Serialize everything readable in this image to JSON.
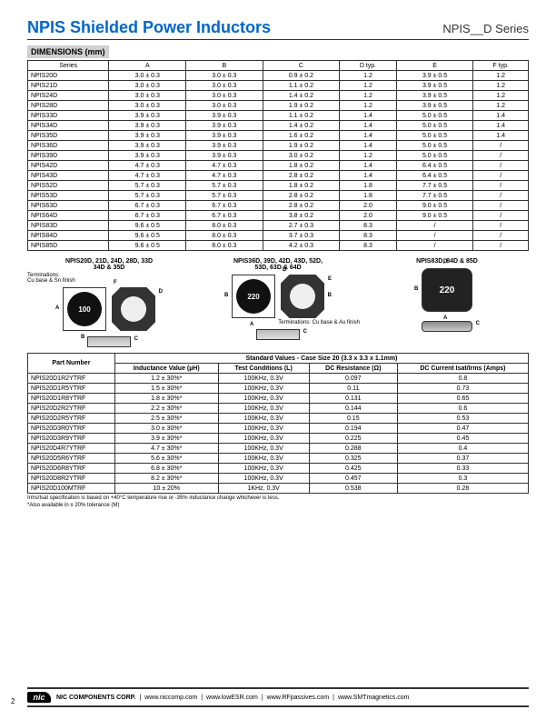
{
  "header": {
    "title": "NPIS Shielded Power Inductors",
    "series": "NPIS__D Series"
  },
  "dimensions": {
    "title": "DIMENSIONS (mm)",
    "columns": [
      "Series",
      "A",
      "B",
      "C",
      "D typ.",
      "E",
      "F typ."
    ],
    "rows": [
      [
        "NPIS20D",
        "3.0 ± 0.3",
        "3.0 ± 0.3",
        "0.9 ± 0.2",
        "1.2",
        "3.9 ± 0.5",
        "1.2"
      ],
      [
        "NPIS21D",
        "3.0 ± 0.3",
        "3.0 ± 0.3",
        "1.1 ± 0.2",
        "1.2",
        "3.9 ± 0.5",
        "1.2"
      ],
      [
        "NPIS24D",
        "3.0 ± 0.3",
        "3.0 ± 0.3",
        "1.4 ± 0.2",
        "1.2",
        "3.9 ± 0.5",
        "1.2"
      ],
      [
        "NPIS28D",
        "3.0 ± 0.3",
        "3.0 ± 0.3",
        "1.9 ± 0.2",
        "1.2",
        "3.9 ± 0.5",
        "1.2"
      ],
      [
        "NPIS33D",
        "3.9 ± 0.3",
        "3.9 ± 0.3",
        "1.1 ± 0.2",
        "1.4",
        "5.0 ± 0.5",
        "1.4"
      ],
      [
        "NPIS34D",
        "3.9 ± 0.3",
        "3.9 ± 0.3",
        "1.4 ± 0.2",
        "1.4",
        "5.0 ± 0.5",
        "1.4"
      ],
      [
        "NPIS35D",
        "3.9 ± 0.3",
        "3.9 ± 0.3",
        "1.6 ± 0.2",
        "1.4",
        "5.0 ± 0.5",
        "1.4"
      ],
      [
        "NPIS36D",
        "3.9 ± 0.3",
        "3.9 ± 0.3",
        "1.9 ± 0.2",
        "1.4",
        "5.0 ± 0.5",
        "/"
      ],
      [
        "NPIS39D",
        "3.9 ± 0.3",
        "3.9 ± 0.3",
        "3.0 ± 0.2",
        "1.2",
        "5.0 ± 0.5",
        "/"
      ],
      [
        "NPIS42D",
        "4.7 ± 0.3",
        "4.7 ± 0.3",
        "1.8 ± 0.2",
        "1.4",
        "6.4 ± 0.5",
        "/"
      ],
      [
        "NPIS43D",
        "4.7 ± 0.3",
        "4.7 ± 0.3",
        "2.8 ± 0.2",
        "1.4",
        "6.4 ± 0.5",
        "/"
      ],
      [
        "NPIS52D",
        "5.7 ± 0.3",
        "5.7 ± 0.3",
        "1.8 ± 0.2",
        "1.8",
        "7.7 ± 0.5",
        "/"
      ],
      [
        "NPIS53D",
        "5.7 ± 0.3",
        "5.7 ± 0.3",
        "2.8 ± 0.2",
        "1.8",
        "7.7 ± 0.5",
        "/"
      ],
      [
        "NPIS63D",
        "6.7 ± 0.3",
        "6.7 ± 0.3",
        "2.8 ± 0.2",
        "2.0",
        "9.0 ± 0.5",
        "/"
      ],
      [
        "NPIS64D",
        "6.7 ± 0.3",
        "6.7 ± 0.3",
        "3.8 ± 0.2",
        "2.0",
        "9.0 ± 0.5",
        "/"
      ],
      [
        "NPIS83D",
        "9.6 ± 0.5",
        "8.0 ± 0.3",
        "2.7 ± 0.3",
        "8.3",
        "/",
        "/"
      ],
      [
        "NPIS84D",
        "9.6 ± 0.5",
        "8.0 ± 0.3",
        "3.7 ± 0.3",
        "8.3",
        "/",
        "/"
      ],
      [
        "NPIS85D",
        "9.6 ± 0.5",
        "8.0 ± 0.3",
        "4.2 ± 0.3",
        "8.3",
        "/",
        "/"
      ]
    ]
  },
  "diagrams": {
    "group1": {
      "title": "NPIS20D, 21D, 24D, 28D, 33D\n34D & 35D",
      "term": "Terminations:\nCu base & Sn finish",
      "code": "100"
    },
    "group2": {
      "title": "NPIS36D, 39D, 42D, 43D, 52D,\n53D, 63D & 64D",
      "term": "Terminations:\nCu base & Au finish",
      "code": "220"
    },
    "group3": {
      "title": "NPIS83D, 84D & 85D",
      "code": "220"
    }
  },
  "std": {
    "title": "Standard Values - Case Size 20 (3.3 x 3.3 x 1.1mm)",
    "headers": {
      "pn": "Part Number",
      "iv": "Inductance Value (µH)",
      "tc": "Test Conditions (L)",
      "dcr": "DC Resistance (Ω)",
      "dci": "DC Current Isat/Irms (Amps)"
    },
    "rows": [
      [
        "NPIS20D1R2YTRF",
        "1.2 ± 30%*",
        "100KHz, 0.3V",
        "0.097",
        "0.8"
      ],
      [
        "NPIS20D1R5YTRF",
        "1.5 ± 30%*",
        "100KHz, 0.3V",
        "0.11",
        "0.73"
      ],
      [
        "NPIS20D1R8YTRF",
        "1.8 ± 30%*",
        "100KHz, 0.3V",
        "0.131",
        "0.65"
      ],
      [
        "NPIS20D2R2YTRF",
        "2.2 ± 30%*",
        "100KHz, 0.3V",
        "0.144",
        "0.6"
      ],
      [
        "NPIS20D2R5YTRF",
        "2.5 ± 30%*",
        "100KHz, 0.3V",
        "0.15",
        "0.53"
      ],
      [
        "NPIS20D3R0YTRF",
        "3.0 ± 30%*",
        "100KHz, 0.3V",
        "0.194",
        "0.47"
      ],
      [
        "NPIS20D3R9YTRF",
        "3.9 ± 30%*",
        "100KHz, 0.3V",
        "0.225",
        "0.45"
      ],
      [
        "NPIS20D4R7YTRF",
        "4.7 ± 30%*",
        "100KHz, 0.3V",
        "0.288",
        "0.4"
      ],
      [
        "NPIS20D5R6YTRF",
        "5.6 ± 30%*",
        "100KHz, 0.3V",
        "0.325",
        "0.37"
      ],
      [
        "NPIS20D6R8YTRF",
        "6.8 ± 30%*",
        "100KHz, 0.3V",
        "0.425",
        "0.33"
      ],
      [
        "NPIS20D8R2YTRF",
        "8.2 ± 30%*",
        "100KHz, 0.3V",
        "0.457",
        "0.3"
      ],
      [
        "NPIS20D100MTRF",
        "10 ± 20%",
        "1KHz, 0.3V",
        "0.538",
        "0.28"
      ]
    ],
    "note1": "Irms/Isat specification is based on +40°C temperature rise or -35% inductance change whichever is less.",
    "note2": "*Also available in ± 20% tolerance (M)"
  },
  "footer": {
    "company": "NIC COMPONENTS CORP.",
    "links": [
      "www.niccomp.com",
      "www.lowESR.com",
      "www.RFpassives.com",
      "www.SMTmagnetics.com"
    ]
  },
  "pagenum": "2"
}
